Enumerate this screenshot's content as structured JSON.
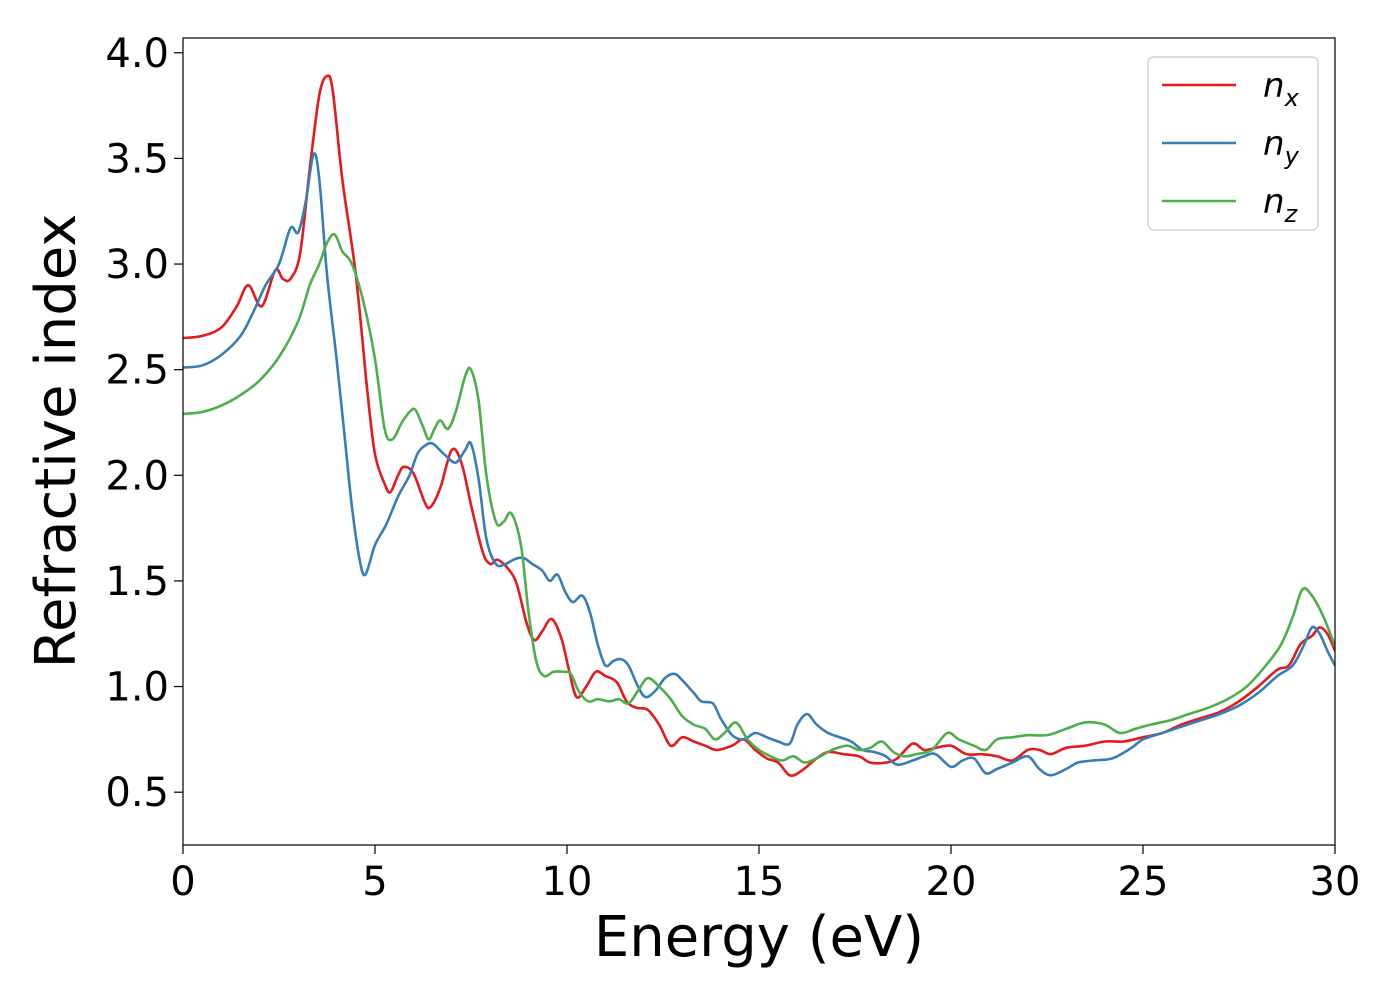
{
  "chart_data": {
    "type": "line",
    "title": "",
    "xlabel": "Energy (eV)",
    "ylabel": "Refractive index",
    "xlim": [
      0,
      30
    ],
    "ylim": [
      0.25,
      4.07
    ],
    "xticks": [
      0,
      5,
      10,
      15,
      20,
      25,
      30
    ],
    "xtick_labels": [
      "0",
      "5",
      "10",
      "15",
      "20",
      "25",
      "30"
    ],
    "yticks": [
      0.5,
      1.0,
      1.5,
      2.0,
      2.5,
      3.0,
      3.5,
      4.0
    ],
    "ytick_labels": [
      "0.5",
      "1.0",
      "1.5",
      "2.0",
      "2.5",
      "3.0",
      "3.5",
      "4.0"
    ],
    "grid": false,
    "legend_position": "top-right",
    "series": [
      {
        "name": "n",
        "subscript": "x",
        "color": "#e41a1c",
        "points": [
          [
            0,
            2.65
          ],
          [
            0.5,
            2.66
          ],
          [
            1.0,
            2.7
          ],
          [
            1.4,
            2.8
          ],
          [
            1.7,
            2.9
          ],
          [
            2.05,
            2.8
          ],
          [
            2.4,
            2.97
          ],
          [
            2.6,
            2.93
          ],
          [
            2.8,
            2.93
          ],
          [
            3.05,
            3.05
          ],
          [
            3.3,
            3.45
          ],
          [
            3.55,
            3.8
          ],
          [
            3.75,
            3.89
          ],
          [
            3.9,
            3.82
          ],
          [
            4.15,
            3.4
          ],
          [
            4.5,
            2.95
          ],
          [
            4.8,
            2.4
          ],
          [
            5.0,
            2.1
          ],
          [
            5.25,
            1.96
          ],
          [
            5.4,
            1.92
          ],
          [
            5.6,
            2.0
          ],
          [
            5.75,
            2.04
          ],
          [
            6.0,
            2.01
          ],
          [
            6.3,
            1.87
          ],
          [
            6.45,
            1.85
          ],
          [
            6.7,
            1.94
          ],
          [
            7.0,
            2.12
          ],
          [
            7.25,
            2.06
          ],
          [
            7.5,
            1.86
          ],
          [
            7.8,
            1.64
          ],
          [
            8.0,
            1.58
          ],
          [
            8.2,
            1.6
          ],
          [
            8.5,
            1.55
          ],
          [
            8.7,
            1.48
          ],
          [
            8.95,
            1.3
          ],
          [
            9.15,
            1.22
          ],
          [
            9.35,
            1.26
          ],
          [
            9.6,
            1.32
          ],
          [
            9.85,
            1.23
          ],
          [
            10.05,
            1.08
          ],
          [
            10.25,
            0.95
          ],
          [
            10.5,
            1.0
          ],
          [
            10.75,
            1.07
          ],
          [
            11.0,
            1.05
          ],
          [
            11.3,
            1.02
          ],
          [
            11.55,
            0.93
          ],
          [
            11.8,
            0.9
          ],
          [
            12.1,
            0.89
          ],
          [
            12.4,
            0.82
          ],
          [
            12.7,
            0.72
          ],
          [
            13.0,
            0.76
          ],
          [
            13.3,
            0.74
          ],
          [
            13.6,
            0.72
          ],
          [
            13.9,
            0.7
          ],
          [
            14.3,
            0.72
          ],
          [
            14.6,
            0.75
          ],
          [
            14.9,
            0.7
          ],
          [
            15.2,
            0.66
          ],
          [
            15.5,
            0.64
          ],
          [
            15.8,
            0.58
          ],
          [
            16.1,
            0.6
          ],
          [
            16.5,
            0.66
          ],
          [
            16.8,
            0.69
          ],
          [
            17.2,
            0.68
          ],
          [
            17.6,
            0.67
          ],
          [
            17.9,
            0.64
          ],
          [
            18.3,
            0.64
          ],
          [
            18.6,
            0.66
          ],
          [
            19.0,
            0.73
          ],
          [
            19.3,
            0.7
          ],
          [
            19.6,
            0.71
          ],
          [
            20.0,
            0.72
          ],
          [
            20.4,
            0.68
          ],
          [
            20.8,
            0.68
          ],
          [
            21.2,
            0.67
          ],
          [
            21.6,
            0.65
          ],
          [
            22.0,
            0.7
          ],
          [
            22.3,
            0.7
          ],
          [
            22.6,
            0.68
          ],
          [
            23.0,
            0.71
          ],
          [
            23.5,
            0.72
          ],
          [
            24.0,
            0.74
          ],
          [
            24.5,
            0.74
          ],
          [
            25.0,
            0.76
          ],
          [
            25.5,
            0.78
          ],
          [
            26.0,
            0.82
          ],
          [
            26.5,
            0.85
          ],
          [
            27.0,
            0.88
          ],
          [
            27.5,
            0.93
          ],
          [
            28.0,
            1.0
          ],
          [
            28.5,
            1.08
          ],
          [
            28.8,
            1.1
          ],
          [
            29.1,
            1.2
          ],
          [
            29.4,
            1.24
          ],
          [
            29.6,
            1.28
          ],
          [
            29.8,
            1.25
          ],
          [
            30.0,
            1.17
          ]
        ]
      },
      {
        "name": "n",
        "subscript": "y",
        "color": "#377eb8",
        "points": [
          [
            0,
            2.51
          ],
          [
            0.5,
            2.52
          ],
          [
            1.0,
            2.57
          ],
          [
            1.5,
            2.66
          ],
          [
            1.85,
            2.78
          ],
          [
            2.15,
            2.9
          ],
          [
            2.5,
            3.0
          ],
          [
            2.8,
            3.17
          ],
          [
            3.0,
            3.15
          ],
          [
            3.2,
            3.3
          ],
          [
            3.4,
            3.52
          ],
          [
            3.55,
            3.4
          ],
          [
            3.75,
            2.95
          ],
          [
            4.0,
            2.55
          ],
          [
            4.2,
            2.2
          ],
          [
            4.4,
            1.85
          ],
          [
            4.6,
            1.6
          ],
          [
            4.75,
            1.53
          ],
          [
            5.0,
            1.67
          ],
          [
            5.3,
            1.77
          ],
          [
            5.6,
            1.9
          ],
          [
            5.9,
            2.0
          ],
          [
            6.1,
            2.1
          ],
          [
            6.3,
            2.14
          ],
          [
            6.5,
            2.15
          ],
          [
            6.8,
            2.1
          ],
          [
            7.1,
            2.06
          ],
          [
            7.35,
            2.12
          ],
          [
            7.5,
            2.15
          ],
          [
            7.7,
            1.98
          ],
          [
            7.9,
            1.7
          ],
          [
            8.15,
            1.58
          ],
          [
            8.4,
            1.58
          ],
          [
            8.6,
            1.6
          ],
          [
            8.85,
            1.61
          ],
          [
            9.1,
            1.58
          ],
          [
            9.35,
            1.55
          ],
          [
            9.55,
            1.5
          ],
          [
            9.75,
            1.53
          ],
          [
            9.95,
            1.45
          ],
          [
            10.15,
            1.4
          ],
          [
            10.4,
            1.43
          ],
          [
            10.6,
            1.35
          ],
          [
            10.8,
            1.2
          ],
          [
            11.0,
            1.1
          ],
          [
            11.2,
            1.12
          ],
          [
            11.4,
            1.13
          ],
          [
            11.6,
            1.1
          ],
          [
            11.85,
            1.0
          ],
          [
            12.05,
            0.95
          ],
          [
            12.3,
            0.98
          ],
          [
            12.55,
            1.04
          ],
          [
            12.8,
            1.06
          ],
          [
            13.0,
            1.03
          ],
          [
            13.3,
            0.97
          ],
          [
            13.5,
            0.93
          ],
          [
            13.8,
            0.92
          ],
          [
            14.0,
            0.85
          ],
          [
            14.3,
            0.77
          ],
          [
            14.6,
            0.75
          ],
          [
            14.9,
            0.78
          ],
          [
            15.2,
            0.76
          ],
          [
            15.5,
            0.74
          ],
          [
            15.8,
            0.73
          ],
          [
            16.0,
            0.82
          ],
          [
            16.25,
            0.87
          ],
          [
            16.5,
            0.82
          ],
          [
            16.8,
            0.78
          ],
          [
            17.1,
            0.76
          ],
          [
            17.4,
            0.74
          ],
          [
            17.7,
            0.7
          ],
          [
            18.0,
            0.69
          ],
          [
            18.3,
            0.67
          ],
          [
            18.6,
            0.63
          ],
          [
            19.0,
            0.65
          ],
          [
            19.3,
            0.67
          ],
          [
            19.6,
            0.68
          ],
          [
            20.0,
            0.62
          ],
          [
            20.3,
            0.65
          ],
          [
            20.6,
            0.66
          ],
          [
            20.9,
            0.59
          ],
          [
            21.2,
            0.61
          ],
          [
            21.6,
            0.64
          ],
          [
            22.0,
            0.67
          ],
          [
            22.3,
            0.61
          ],
          [
            22.6,
            0.58
          ],
          [
            23.0,
            0.61
          ],
          [
            23.3,
            0.64
          ],
          [
            23.7,
            0.65
          ],
          [
            24.2,
            0.66
          ],
          [
            24.7,
            0.71
          ],
          [
            25.0,
            0.75
          ],
          [
            25.5,
            0.78
          ],
          [
            26.0,
            0.81
          ],
          [
            26.5,
            0.84
          ],
          [
            27.0,
            0.87
          ],
          [
            27.5,
            0.91
          ],
          [
            28.0,
            0.97
          ],
          [
            28.5,
            1.05
          ],
          [
            28.9,
            1.1
          ],
          [
            29.2,
            1.2
          ],
          [
            29.4,
            1.28
          ],
          [
            29.6,
            1.25
          ],
          [
            29.8,
            1.17
          ],
          [
            30.0,
            1.1
          ]
        ]
      },
      {
        "name": "n",
        "subscript": "z",
        "color": "#4daf4a",
        "points": [
          [
            0,
            2.29
          ],
          [
            0.5,
            2.3
          ],
          [
            1.0,
            2.33
          ],
          [
            1.5,
            2.38
          ],
          [
            2.0,
            2.45
          ],
          [
            2.5,
            2.56
          ],
          [
            3.0,
            2.73
          ],
          [
            3.3,
            2.9
          ],
          [
            3.55,
            3.0
          ],
          [
            3.75,
            3.1
          ],
          [
            3.95,
            3.14
          ],
          [
            4.15,
            3.06
          ],
          [
            4.4,
            3.0
          ],
          [
            4.7,
            2.82
          ],
          [
            5.0,
            2.55
          ],
          [
            5.25,
            2.22
          ],
          [
            5.45,
            2.17
          ],
          [
            5.7,
            2.25
          ],
          [
            5.9,
            2.3
          ],
          [
            6.05,
            2.31
          ],
          [
            6.25,
            2.23
          ],
          [
            6.4,
            2.17
          ],
          [
            6.55,
            2.22
          ],
          [
            6.7,
            2.26
          ],
          [
            6.9,
            2.22
          ],
          [
            7.1,
            2.3
          ],
          [
            7.35,
            2.47
          ],
          [
            7.5,
            2.5
          ],
          [
            7.7,
            2.35
          ],
          [
            7.9,
            2.0
          ],
          [
            8.15,
            1.78
          ],
          [
            8.35,
            1.78
          ],
          [
            8.55,
            1.82
          ],
          [
            8.8,
            1.67
          ],
          [
            9.0,
            1.35
          ],
          [
            9.2,
            1.12
          ],
          [
            9.4,
            1.05
          ],
          [
            9.65,
            1.07
          ],
          [
            9.9,
            1.07
          ],
          [
            10.1,
            1.06
          ],
          [
            10.3,
            0.98
          ],
          [
            10.55,
            0.93
          ],
          [
            10.8,
            0.94
          ],
          [
            11.1,
            0.93
          ],
          [
            11.35,
            0.94
          ],
          [
            11.6,
            0.92
          ],
          [
            11.85,
            0.98
          ],
          [
            12.1,
            1.04
          ],
          [
            12.4,
            1.0
          ],
          [
            12.7,
            0.94
          ],
          [
            13.0,
            0.86
          ],
          [
            13.3,
            0.82
          ],
          [
            13.6,
            0.8
          ],
          [
            13.85,
            0.75
          ],
          [
            14.1,
            0.78
          ],
          [
            14.4,
            0.83
          ],
          [
            14.7,
            0.75
          ],
          [
            15.0,
            0.7
          ],
          [
            15.3,
            0.67
          ],
          [
            15.6,
            0.65
          ],
          [
            15.9,
            0.67
          ],
          [
            16.2,
            0.64
          ],
          [
            16.6,
            0.67
          ],
          [
            16.9,
            0.7
          ],
          [
            17.3,
            0.72
          ],
          [
            17.6,
            0.7
          ],
          [
            17.9,
            0.71
          ],
          [
            18.2,
            0.74
          ],
          [
            18.5,
            0.69
          ],
          [
            18.8,
            0.67
          ],
          [
            19.1,
            0.68
          ],
          [
            19.5,
            0.7
          ],
          [
            19.9,
            0.78
          ],
          [
            20.2,
            0.75
          ],
          [
            20.6,
            0.72
          ],
          [
            20.9,
            0.7
          ],
          [
            21.2,
            0.75
          ],
          [
            21.6,
            0.76
          ],
          [
            22.0,
            0.77
          ],
          [
            22.5,
            0.77
          ],
          [
            23.0,
            0.8
          ],
          [
            23.5,
            0.83
          ],
          [
            24.0,
            0.82
          ],
          [
            24.4,
            0.78
          ],
          [
            24.8,
            0.8
          ],
          [
            25.2,
            0.82
          ],
          [
            25.7,
            0.84
          ],
          [
            26.2,
            0.87
          ],
          [
            26.7,
            0.9
          ],
          [
            27.2,
            0.94
          ],
          [
            27.7,
            1.0
          ],
          [
            28.2,
            1.1
          ],
          [
            28.6,
            1.2
          ],
          [
            28.9,
            1.33
          ],
          [
            29.15,
            1.46
          ],
          [
            29.4,
            1.43
          ],
          [
            29.7,
            1.33
          ],
          [
            30.0,
            1.19
          ]
        ]
      }
    ]
  }
}
